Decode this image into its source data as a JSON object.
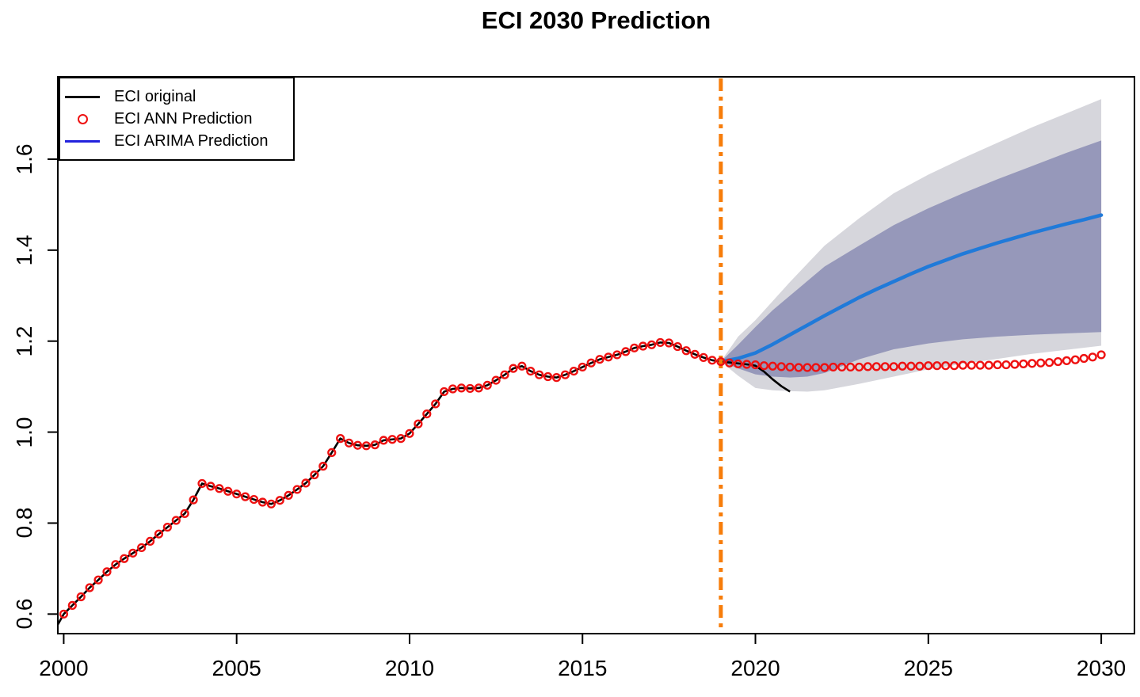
{
  "title": "ECI 2030 Prediction",
  "colors": {
    "original": "#000000",
    "ann": "#EE1111",
    "arima_line": "#207AD9",
    "arima_legend": "#2222DD",
    "band_80": "#9698BA",
    "band_95": "#D6D6DC",
    "cutoff": "#F77D0A",
    "frame": "#000000"
  },
  "legend": {
    "items": [
      {
        "label": "ECI original",
        "marker": "line",
        "color": "#000000"
      },
      {
        "label": "ECI ANN Prediction",
        "marker": "circle",
        "color": "#EE1111"
      },
      {
        "label": "ECI ARIMA Prediction",
        "marker": "line",
        "color": "#2222DD"
      }
    ]
  },
  "chart_data": {
    "type": "line",
    "title": "ECI 2030 Prediction",
    "x_axis": {
      "ticks": [
        2000,
        2005,
        2010,
        2015,
        2020,
        2025,
        2030
      ],
      "tick_labels": [
        "2000",
        "2005",
        "2010",
        "2015",
        "2020",
        "2025",
        "2030"
      ],
      "range": [
        1999.83,
        2030.96
      ]
    },
    "y_axis": {
      "ticks": [
        0.6,
        0.8,
        1.0,
        1.2,
        1.4,
        1.6
      ],
      "tick_labels": [
        "0.6",
        "0.8",
        "1.0",
        "1.2",
        "1.4",
        "1.6"
      ],
      "range": [
        0.557,
        1.781
      ]
    },
    "grid": false,
    "legend_position": "topleft",
    "cutoff_line": {
      "x": 2019,
      "style": "dotdash",
      "color": "#F77D0A"
    },
    "series": {
      "original": {
        "name": "ECI original",
        "lead_in": {
          "x": 1999.83,
          "y": 0.577
        },
        "start": 2000,
        "step": 0.25,
        "values": [
          0.6,
          0.619,
          0.638,
          0.658,
          0.675,
          0.693,
          0.709,
          0.722,
          0.734,
          0.746,
          0.76,
          0.776,
          0.791,
          0.806,
          0.821,
          0.851,
          0.887,
          0.881,
          0.876,
          0.87,
          0.864,
          0.858,
          0.852,
          0.846,
          0.842,
          0.85,
          0.861,
          0.874,
          0.888,
          0.906,
          0.925,
          0.955,
          0.986,
          0.976,
          0.971,
          0.97,
          0.972,
          0.982,
          0.984,
          0.986,
          0.997,
          1.018,
          1.04,
          1.062,
          1.089,
          1.095,
          1.097,
          1.096,
          1.097,
          1.103,
          1.114,
          1.126,
          1.14,
          1.145,
          1.134,
          1.126,
          1.122,
          1.12,
          1.126,
          1.134,
          1.143,
          1.152,
          1.16,
          1.165,
          1.17,
          1.177,
          1.185,
          1.189,
          1.192,
          1.197,
          1.196,
          1.188,
          1.179,
          1.171,
          1.164,
          1.158,
          1.155,
          1.153,
          1.151,
          1.149,
          1.146,
          1.133,
          1.116,
          1.101,
          1.089
        ]
      },
      "ann": {
        "name": "ECI ANN Prediction",
        "start": 2000,
        "step": 0.25,
        "values": [
          0.6,
          0.619,
          0.638,
          0.658,
          0.675,
          0.693,
          0.709,
          0.722,
          0.734,
          0.746,
          0.76,
          0.776,
          0.791,
          0.806,
          0.821,
          0.851,
          0.887,
          0.881,
          0.876,
          0.87,
          0.864,
          0.858,
          0.852,
          0.846,
          0.842,
          0.85,
          0.861,
          0.874,
          0.888,
          0.906,
          0.925,
          0.955,
          0.986,
          0.976,
          0.971,
          0.97,
          0.972,
          0.982,
          0.984,
          0.986,
          0.997,
          1.018,
          1.04,
          1.062,
          1.089,
          1.095,
          1.097,
          1.096,
          1.097,
          1.103,
          1.114,
          1.126,
          1.14,
          1.145,
          1.134,
          1.126,
          1.122,
          1.12,
          1.126,
          1.134,
          1.143,
          1.152,
          1.16,
          1.165,
          1.17,
          1.177,
          1.185,
          1.189,
          1.192,
          1.197,
          1.196,
          1.188,
          1.179,
          1.171,
          1.164,
          1.158,
          1.155,
          1.152,
          1.15,
          1.149,
          1.148,
          1.146,
          1.145,
          1.144,
          1.143,
          1.142,
          1.142,
          1.142,
          1.142,
          1.143,
          1.143,
          1.143,
          1.143,
          1.144,
          1.144,
          1.144,
          1.144,
          1.145,
          1.145,
          1.145,
          1.146,
          1.146,
          1.146,
          1.146,
          1.147,
          1.147,
          1.147,
          1.147,
          1.148,
          1.148,
          1.149,
          1.15,
          1.151,
          1.152,
          1.153,
          1.155,
          1.157,
          1.159,
          1.162,
          1.165,
          1.17
        ]
      },
      "arima": {
        "name": "ECI ARIMA Prediction",
        "start": 2019,
        "step": 0.5,
        "values": [
          1.155,
          1.162,
          1.174,
          1.193,
          1.214,
          1.235,
          1.256,
          1.276,
          1.296,
          1.314,
          1.331,
          1.348,
          1.364,
          1.378,
          1.392,
          1.404,
          1.416,
          1.427,
          1.438,
          1.448,
          1.458,
          1.467,
          1.477
        ]
      }
    },
    "bands": [
      {
        "level": 80,
        "x": [
          2019,
          2019.5,
          2020,
          2020.5,
          2021,
          2021.5,
          2022,
          2023,
          2024,
          2025,
          2026,
          2027,
          2028,
          2029,
          2030
        ],
        "lo": [
          1.155,
          1.14,
          1.127,
          1.122,
          1.12,
          1.122,
          1.13,
          1.16,
          1.182,
          1.195,
          1.204,
          1.21,
          1.214,
          1.217,
          1.22
        ],
        "hi": [
          1.155,
          1.192,
          1.231,
          1.268,
          1.3,
          1.332,
          1.364,
          1.41,
          1.455,
          1.492,
          1.525,
          1.556,
          1.585,
          1.614,
          1.641
        ]
      },
      {
        "level": 95,
        "x": [
          2019,
          2019.5,
          2020,
          2020.5,
          2021,
          2021.5,
          2022,
          2023,
          2024,
          2025,
          2026,
          2027,
          2028,
          2029,
          2030
        ],
        "lo": [
          1.155,
          1.124,
          1.097,
          1.092,
          1.09,
          1.089,
          1.092,
          1.106,
          1.122,
          1.138,
          1.15,
          1.161,
          1.172,
          1.181,
          1.19
        ],
        "hi": [
          1.155,
          1.21,
          1.246,
          1.288,
          1.33,
          1.37,
          1.41,
          1.47,
          1.525,
          1.566,
          1.602,
          1.636,
          1.67,
          1.701,
          1.732
        ]
      }
    ]
  }
}
